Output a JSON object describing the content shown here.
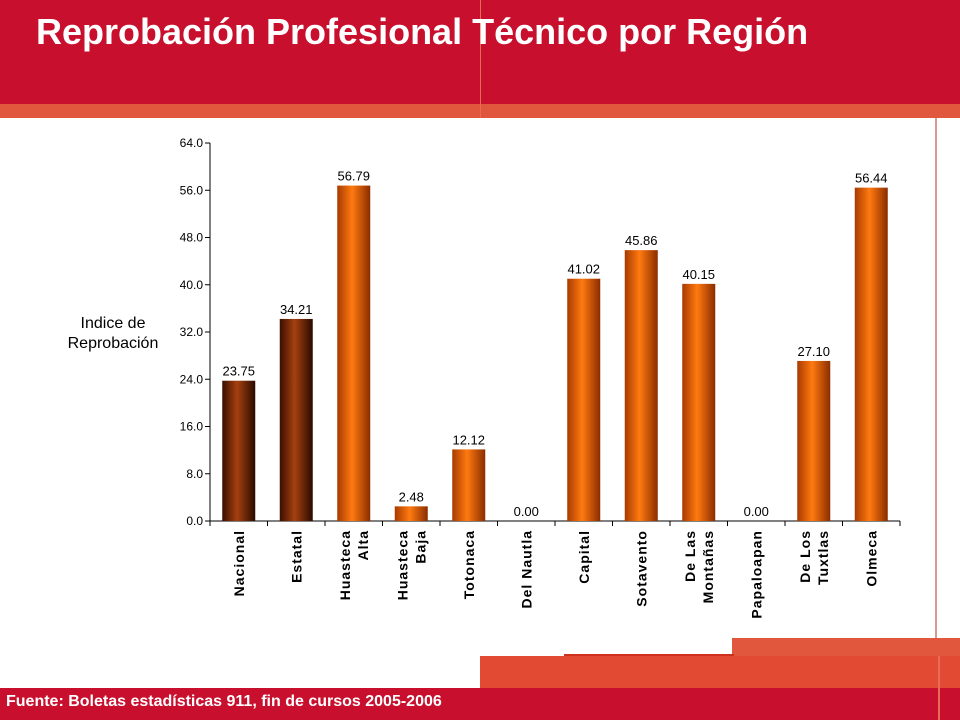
{
  "title": "Reprobación Profesional Técnico por Región",
  "footer": "Fuente: Boletas estadísticas 911, fin de cursos 2005-2006",
  "colors": {
    "header": "#c8102e",
    "bar_dark": "#7a2a08",
    "bar_orange": "#ff6a00"
  },
  "chart_data": {
    "type": "bar",
    "title": "",
    "xlabel": "",
    "ylabel": [
      "Indice de",
      "Reprobación"
    ],
    "ylim": [
      0,
      64
    ],
    "yticks": [
      "0.0",
      "8.0",
      "16.0",
      "24.0",
      "32.0",
      "40.0",
      "48.0",
      "56.0",
      "64.0"
    ],
    "grid": false,
    "categories": [
      [
        "Nacional"
      ],
      [
        "Estatal"
      ],
      [
        "Huasteca",
        "Alta"
      ],
      [
        "Huasteca",
        "Baja"
      ],
      [
        "Totonaca"
      ],
      [
        "Del Nautla"
      ],
      [
        "Capital"
      ],
      [
        "Sotavento"
      ],
      [
        "De Las",
        "Montañas"
      ],
      [
        "Papaloapan"
      ],
      [
        "De Los",
        "Tuxtlas"
      ],
      [
        "Olmeca"
      ]
    ],
    "values": [
      23.75,
      34.21,
      56.79,
      2.48,
      12.12,
      0.0,
      41.02,
      45.86,
      40.15,
      0.0,
      27.1,
      56.44
    ],
    "data_labels": [
      "23.75",
      "34.21",
      "56.79",
      "2.48",
      "12.12",
      "0.00",
      "41.02",
      "45.86",
      "40.15",
      "0.00",
      "27.10",
      "56.44"
    ],
    "bar_colors": [
      "dark",
      "dark",
      "orange",
      "orange",
      "orange",
      "orange",
      "orange",
      "orange",
      "orange",
      "orange",
      "orange",
      "orange"
    ]
  }
}
